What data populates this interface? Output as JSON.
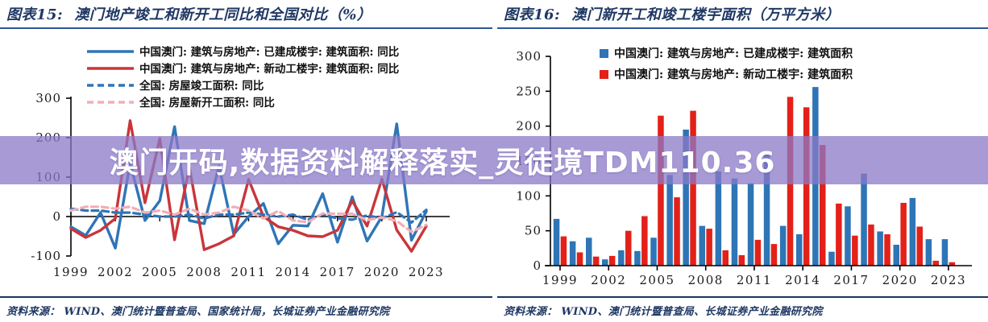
{
  "panels": {
    "left": {
      "fig_label": "图表15:",
      "title": "澳门地产竣工和新开工同比和全国对比（%）",
      "source": "资料来源：  WIND、澳门统计暨普查局、国家统计局，长城证券产业金融研究院"
    },
    "right": {
      "fig_label": "图表16:",
      "title": "澳门新开工和竣工楼宇面积（万平方米）",
      "source": "资料来源：  WIND、澳门统计暨普查局、长城证券产业金融研究院"
    }
  },
  "overlay": {
    "text": "澳门开码,数据资料解释落实_灵徒境TDM110.36",
    "background": "#8B7AC7",
    "text_color": "#FFFFFF"
  },
  "colors": {
    "title_navy": "#1F3864",
    "rule_blue": "#2F5597",
    "axis": "#000000",
    "tick_text": "#1a1a1a",
    "macau_blue": "#2E75B6",
    "macau_red_line": "#C9353B",
    "macau_red_bar": "#E32119",
    "national_pink": "#F2AEB6"
  },
  "chart_data": [
    {
      "id": "left",
      "type": "line",
      "title": "澳门地产竣工和新开工同比和全国对比（%）",
      "unit": "%",
      "x": [
        1999,
        2000,
        2001,
        2002,
        2003,
        2004,
        2005,
        2006,
        2007,
        2008,
        2009,
        2010,
        2011,
        2012,
        2013,
        2014,
        2015,
        2016,
        2017,
        2018,
        2019,
        2020,
        2021,
        2022,
        2023
      ],
      "xticks": [
        1999,
        2002,
        2005,
        2008,
        2011,
        2014,
        2017,
        2020,
        2023
      ],
      "ylim": [
        -100,
        300
      ],
      "yticks": [
        300,
        200,
        100,
        0,
        -100
      ],
      "grid": false,
      "legend_position": "top-left",
      "series": [
        {
          "name": "中国澳门: 建筑与房地产: 已建成楼宇: 建筑面积: 同比",
          "style": "solid",
          "color": "#2E75B6",
          "values": [
            -26,
            -48,
            10,
            -80,
            135,
            -10,
            40,
            228,
            -10,
            -18,
            128,
            -45,
            0,
            33,
            -69,
            -22,
            -24,
            58,
            -65,
            50,
            -62,
            0,
            235,
            -60,
            13
          ]
        },
        {
          "name": "中国澳门: 建筑与房地产: 新动工楼宇: 建筑面积: 同比",
          "style": "solid",
          "color": "#C9353B",
          "values": [
            -31,
            -53,
            -35,
            -5,
            243,
            35,
            198,
            -59,
            125,
            -84,
            -69,
            -49,
            94,
            0,
            -26,
            -35,
            -49,
            -51,
            -35,
            40,
            -24,
            95,
            -34,
            -88,
            -24
          ]
        },
        {
          "name": "全国: 房屋竣工面积: 同比",
          "style": "dashed",
          "color": "#2E75B6",
          "values": [
            20,
            15,
            15,
            10,
            10,
            5,
            0,
            0,
            5,
            -5,
            5,
            5,
            10,
            5,
            0,
            5,
            -8,
            5,
            -5,
            -8,
            3,
            -5,
            11,
            -15,
            17
          ]
        },
        {
          "name": "全国: 房屋新开工面积: 同比",
          "style": "dashed",
          "color": "#F2AEB6",
          "values": [
            15,
            25,
            25,
            20,
            25,
            10,
            15,
            5,
            20,
            5,
            10,
            25,
            15,
            -5,
            14,
            -10,
            -14,
            8,
            7,
            7,
            -9,
            -2,
            -11,
            -39,
            -21
          ]
        }
      ]
    },
    {
      "id": "right",
      "type": "bar",
      "title": "澳门新开工和竣工楼宇面积（万平方米）",
      "unit": "万平方米",
      "x": [
        1999,
        2000,
        2001,
        2002,
        2003,
        2004,
        2005,
        2006,
        2007,
        2008,
        2009,
        2010,
        2011,
        2012,
        2013,
        2014,
        2015,
        2016,
        2017,
        2018,
        2019,
        2020,
        2021,
        2022,
        2023
      ],
      "xticks": [
        1999,
        2002,
        2005,
        2008,
        2011,
        2014,
        2017,
        2020,
        2023
      ],
      "ylim": [
        0,
        300
      ],
      "yticks": [
        0,
        50,
        100,
        150,
        200,
        250,
        300
      ],
      "grid": false,
      "legend_position": "top",
      "series": [
        {
          "name": "中国澳门: 建筑与房地产: 已建成楼宇: 建筑面积",
          "color": "#2E75B6",
          "values": [
            67,
            35,
            40,
            9,
            22,
            21,
            40,
            130,
            195,
            57,
            135,
            125,
            118,
            160,
            57,
            45,
            256,
            20,
            85,
            132,
            49,
            30,
            97,
            38,
            38
          ]
        },
        {
          "name": "中国澳门: 建筑与房地产: 新动工楼宇: 建筑面积",
          "color": "#E32119",
          "values": [
            42,
            19,
            13,
            14,
            50,
            71,
            215,
            98,
            222,
            53,
            22,
            15,
            37,
            31,
            242,
            227,
            173,
            89,
            43,
            59,
            45,
            90,
            56,
            7,
            5
          ]
        }
      ]
    }
  ]
}
